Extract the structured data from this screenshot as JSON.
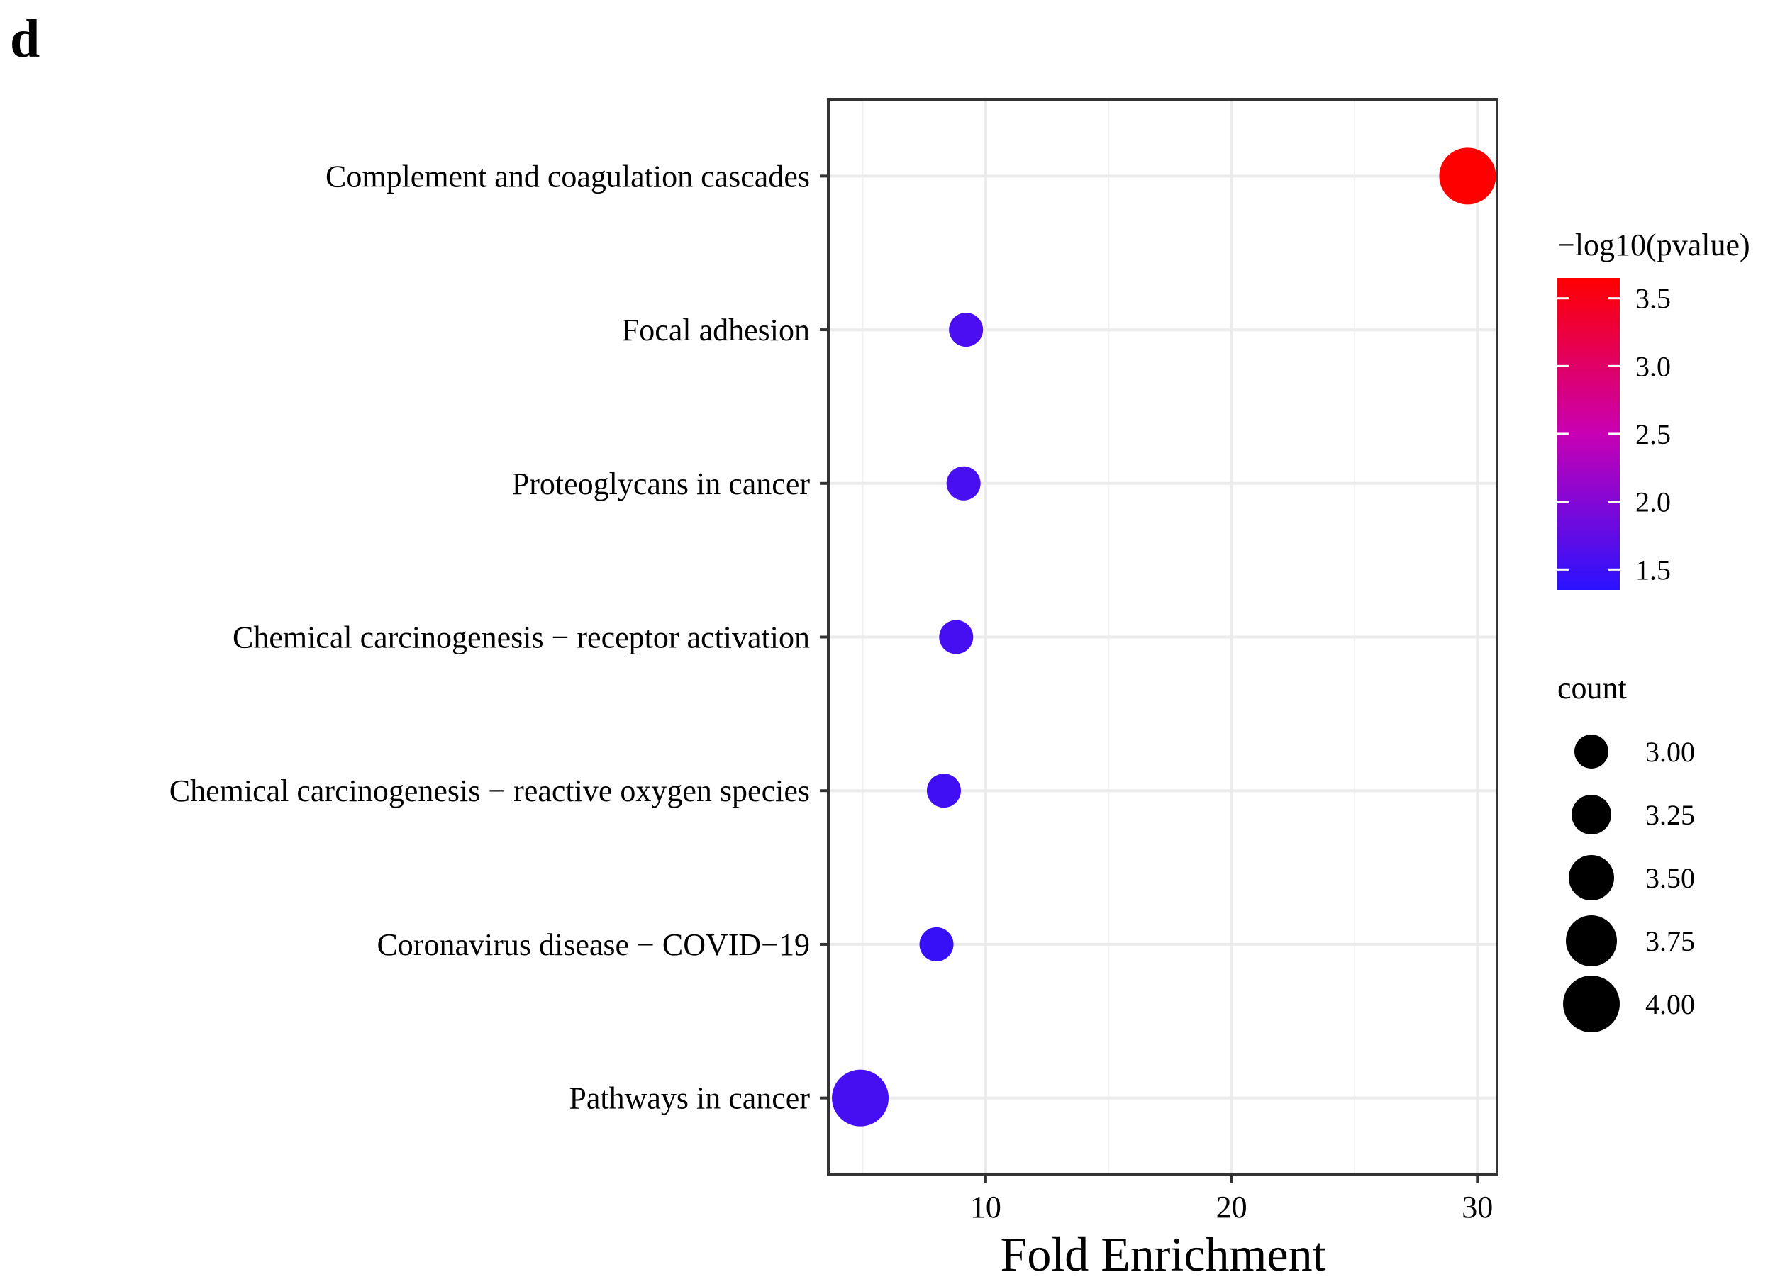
{
  "panel_label": "d",
  "chart_data": {
    "type": "scatter",
    "title": "",
    "xlabel": "Fold Enrichment",
    "ylabel": "",
    "xlim": [
      3.6,
      30.8
    ],
    "xticks": [
      10,
      20,
      30
    ],
    "xtick_labels": [
      "10",
      "20",
      "30"
    ],
    "x_minor_gridlines": [
      5,
      15,
      25
    ],
    "grid": true,
    "categories": [
      "Complement and coagulation cascades",
      "Focal adhesion",
      "Proteoglycans in cancer",
      "Chemical carcinogenesis − receptor activation",
      "Chemical carcinogenesis − reactive oxygen species",
      "Coronavirus disease − COVID−19",
      "Pathways in cancer"
    ],
    "points": [
      {
        "category": "Complement and coagulation cascades",
        "fold_enrichment": 29.6,
        "neg_log10_pvalue": 3.65,
        "count": 4
      },
      {
        "category": "Focal adhesion",
        "fold_enrichment": 9.2,
        "neg_log10_pvalue": 1.58,
        "count": 3
      },
      {
        "category": "Proteoglycans in cancer",
        "fold_enrichment": 9.1,
        "neg_log10_pvalue": 1.57,
        "count": 3
      },
      {
        "category": "Chemical carcinogenesis − receptor activation",
        "fold_enrichment": 8.8,
        "neg_log10_pvalue": 1.55,
        "count": 3
      },
      {
        "category": "Chemical carcinogenesis − reactive oxygen species",
        "fold_enrichment": 8.3,
        "neg_log10_pvalue": 1.52,
        "count": 3
      },
      {
        "category": "Coronavirus disease − COVID−19",
        "fold_enrichment": 8.0,
        "neg_log10_pvalue": 1.45,
        "count": 3
      },
      {
        "category": "Pathways in cancer",
        "fold_enrichment": 4.9,
        "neg_log10_pvalue": 1.55,
        "count": 4
      }
    ],
    "color_legend": {
      "title": "−log10(pvalue)",
      "range": [
        1.35,
        3.65
      ],
      "breaks": [
        1.5,
        2.0,
        2.5,
        3.0,
        3.5
      ],
      "labels": [
        "1.5",
        "2.0",
        "2.5",
        "3.0",
        "3.5"
      ],
      "low_color": "#2a12ff",
      "mid_color": "#c800b4",
      "high_color": "#ff0000"
    },
    "size_legend": {
      "title": "count",
      "breaks": [
        3.0,
        3.25,
        3.5,
        3.75,
        4.0
      ],
      "labels": [
        "3.00",
        "3.25",
        "3.50",
        "3.75",
        "4.00"
      ],
      "range": [
        3,
        4
      ]
    },
    "legend_position": "right"
  }
}
